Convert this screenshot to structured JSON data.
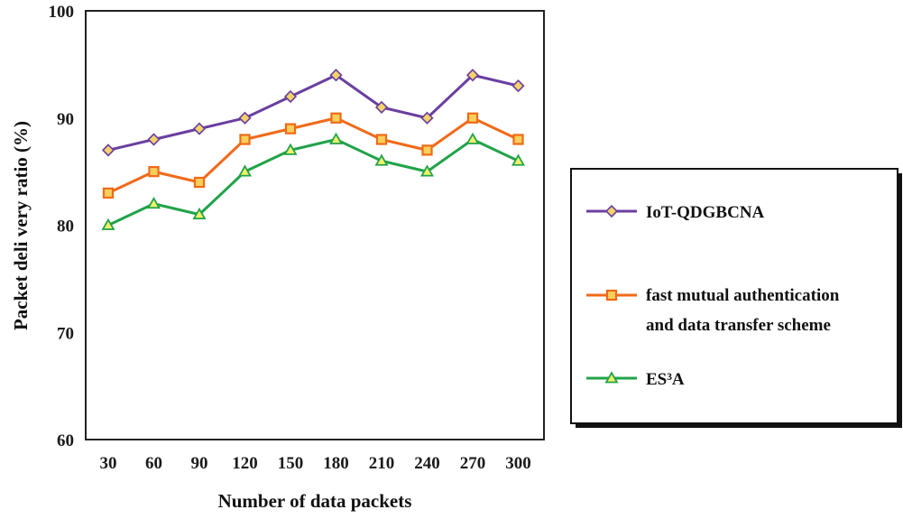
{
  "chart_data": {
    "type": "line",
    "xlabel": "Number of data packets",
    "ylabel": "Packet deli very ratio (%)",
    "categories": [
      "30",
      "60",
      "90",
      "120",
      "150",
      "180",
      "210",
      "240",
      "270",
      "300"
    ],
    "ylim": [
      60,
      100
    ],
    "yticks": [
      "60",
      "70",
      "80",
      "90",
      "100"
    ],
    "grid": false,
    "legend_position": "right",
    "series": [
      {
        "name": "IoT-QDGBCNA",
        "marker": "diamond",
        "color": "#6a3fa0",
        "marker_fill": "#f2d36a",
        "values": [
          87,
          88,
          89,
          90,
          92,
          94,
          91,
          90,
          94,
          93
        ]
      },
      {
        "name": "fast mutual authentication and data transfer scheme",
        "legend_lines": [
          "fast mutual authentication",
          "and data transfer scheme"
        ],
        "marker": "square",
        "color": "#f06a1a",
        "marker_fill": "#f6d05a",
        "values": [
          83,
          85,
          84,
          88,
          89,
          90,
          88,
          87,
          90,
          88
        ]
      },
      {
        "name": "ES³A",
        "marker": "triangle",
        "color": "#21a34a",
        "marker_fill": "#f2f06a",
        "values": [
          80,
          82,
          81,
          85,
          87,
          88,
          86,
          85,
          88,
          86
        ]
      }
    ]
  }
}
